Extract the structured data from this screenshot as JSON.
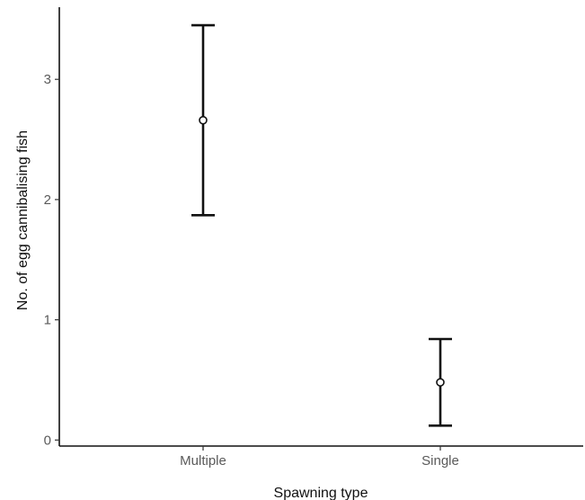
{
  "chart_data": {
    "type": "scatter",
    "subtype": "point-with-error-bars",
    "title": "",
    "xlabel": "Spawning type",
    "ylabel": "No. of egg cannibalising fish",
    "categories": [
      "Multiple",
      "Single"
    ],
    "series": [
      {
        "values": [
          2.66,
          0.48
        ],
        "lower": [
          1.87,
          0.12
        ],
        "upper": [
          3.45,
          0.84
        ]
      }
    ],
    "ylim": [
      -0.05,
      3.6
    ],
    "yticks": [
      0,
      1,
      2,
      3
    ],
    "grid": false,
    "legend": "none",
    "colors": {
      "axis": "#111111",
      "tick_label": "#5a5a5a",
      "point_fill": "#ffffff",
      "error_bar": "#111111"
    }
  }
}
